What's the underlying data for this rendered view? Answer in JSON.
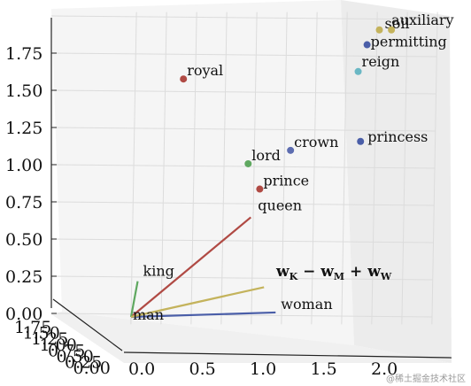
{
  "chart_data": {
    "type": "scatter",
    "projection": "3d",
    "grid": true,
    "x_ticks": [
      "0.0",
      "0.5",
      "1.0",
      "1.5",
      "2.0"
    ],
    "y_ticks_left": [
      "0.00",
      "0.25",
      "0.50",
      "0.75",
      "1.00",
      "1.25",
      "1.50",
      "1.75"
    ],
    "depth_tick_labels": [
      "1.75",
      "1.50",
      "1.25",
      "1.00",
      "0.75",
      "0.50",
      "0.25",
      "0.00"
    ],
    "points": [
      {
        "label": "royal",
        "x": 0.4,
        "y": 1.6,
        "color": "#b04a44"
      },
      {
        "label": "lord",
        "x": 0.95,
        "y": 1.03,
        "color": "#5fa860"
      },
      {
        "label": "crown",
        "x": 1.3,
        "y": 1.12,
        "color": "#5d6db0"
      },
      {
        "label": "prince",
        "x": 1.05,
        "y": 0.86,
        "color": "#b04a44"
      },
      {
        "label": "princess",
        "x": 1.88,
        "y": 1.18,
        "color": "#4a5ea8"
      },
      {
        "label": "reign",
        "x": 1.85,
        "y": 1.65,
        "color": "#6ab7c4"
      },
      {
        "label": "permitting",
        "x": 1.92,
        "y": 1.83,
        "color": "#4a5ea8"
      },
      {
        "label": "soil",
        "x": 2.02,
        "y": 1.93,
        "color": "#c4b35c"
      },
      {
        "label": "auxiliary",
        "x": 2.12,
        "y": 1.93,
        "color": "#c4b35c"
      }
    ],
    "vectors": [
      {
        "label": "queen",
        "from": [
          0,
          0
        ],
        "to": [
          0.98,
          0.67
        ],
        "color": "#b04a44"
      },
      {
        "label": "king",
        "from": [
          0,
          0
        ],
        "to": [
          0.05,
          0.24
        ],
        "color": "#5fa860"
      },
      {
        "label": "woman",
        "from": [
          0,
          0
        ],
        "to": [
          1.2,
          0.03
        ],
        "color": "#4a5ea8"
      },
      {
        "label": "formula",
        "from": [
          0,
          0
        ],
        "to": [
          1.1,
          0.2
        ],
        "color": "#c4b35c"
      }
    ],
    "origin_label": "man",
    "formula_label": "w_K − w_M + w_W"
  },
  "watermark": "@稀土掘金技术社区"
}
